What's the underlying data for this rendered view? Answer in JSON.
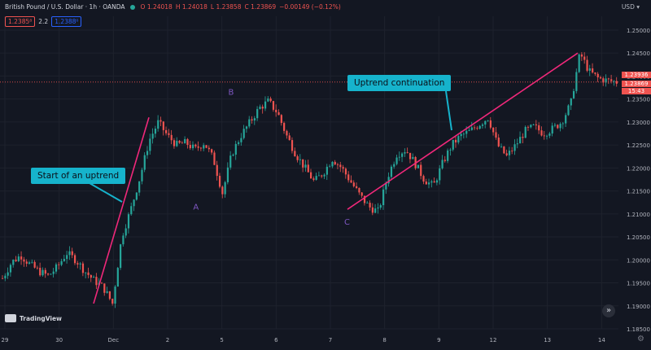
{
  "header": {
    "title": "British Pound / U.S. Dollar · 1h · OANDA",
    "ohlc": {
      "open": "O 1.24018",
      "high": "H 1.24018",
      "low": "L 1.23858",
      "close": "C 1.23869",
      "change": "−0.00149 (−0.12%)"
    },
    "sell_price": "1.2385⁸",
    "spread": "2.2",
    "buy_price": "1.2388⁰",
    "currency": "USD"
  },
  "price_axis": {
    "ticks": [
      "1.25000",
      "1.24500",
      "1.24000",
      "1.23500",
      "1.23000",
      "1.22500",
      "1.22000",
      "1.21500",
      "1.21000",
      "1.20500",
      "1.20000",
      "1.19500",
      "1.19000",
      "1.18500"
    ],
    "tag_top": "1.23936",
    "tag_current": "1.23869",
    "tag_countdown": "15:43"
  },
  "time_axis": {
    "ticks": [
      "29",
      "30",
      "Dec",
      "2",
      "5",
      "6",
      "7",
      "8",
      "9",
      "12",
      "13",
      "14"
    ]
  },
  "annotations": {
    "callout_1": "Start of an uptrend",
    "callout_2": "Uptrend continuation",
    "point_a": "A",
    "point_b": "B",
    "point_c": "C"
  },
  "branding": {
    "logo_text": "TradingView",
    "nav_icon": "double-chevron-right-icon",
    "settings_icon": "gear-icon"
  },
  "colors": {
    "background": "#131722",
    "up": "#26a69a",
    "down": "#ef5350",
    "trendline": "#f0287a",
    "callout": "#16b3cc",
    "label": "#7e57c2"
  },
  "chart_data": {
    "type": "candlestick",
    "symbol": "GBPUSD",
    "interval": "1h",
    "ylim": [
      1.185,
      1.253
    ],
    "x_categories": [
      "29",
      "30",
      "Dec",
      "2",
      "5",
      "6",
      "7",
      "8",
      "9",
      "12",
      "13",
      "14"
    ],
    "trend_path_close": [
      1.196,
      1.1995,
      1.201,
      1.199,
      1.1975,
      1.1965,
      1.1985,
      1.2015,
      1.2,
      1.1975,
      1.1955,
      1.194,
      1.1905,
      1.205,
      1.211,
      1.218,
      1.226,
      1.23,
      1.227,
      1.225,
      1.2255,
      1.224,
      1.2255,
      1.222,
      1.2145,
      1.223,
      1.227,
      1.23,
      1.233,
      1.2345,
      1.232,
      1.227,
      1.223,
      1.22,
      1.217,
      1.219,
      1.222,
      1.22,
      1.217,
      1.214,
      1.2115,
      1.2105,
      1.218,
      1.223,
      1.224,
      1.221,
      1.2175,
      1.216,
      1.221,
      1.225,
      1.227,
      1.228,
      1.2295,
      1.231,
      1.225,
      1.2225,
      1.225,
      1.228,
      1.229,
      1.2275,
      1.2285,
      1.23,
      1.234,
      1.245,
      1.241,
      1.2395,
      1.239,
      1.2387
    ],
    "key_points": {
      "A": {
        "label": "A",
        "price": 1.2145
      },
      "B": {
        "label": "B",
        "price": 1.2345
      },
      "C": {
        "label": "C",
        "price": 1.2105
      }
    },
    "trendlines": [
      {
        "name": "start-of-uptrend",
        "from": 1.1905,
        "to": 1.231
      },
      {
        "name": "uptrend-continuation",
        "from": 1.211,
        "to": 1.245
      }
    ],
    "current_price": 1.23869
  }
}
